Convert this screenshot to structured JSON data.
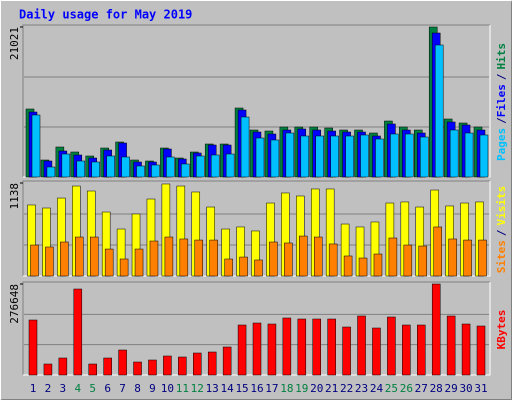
{
  "title": "Daily usage for May 2019",
  "chart_data": [
    {
      "type": "bar",
      "ylim": [
        0,
        21021
      ],
      "yticks": [
        21021
      ],
      "legend_separator": "/",
      "series": [
        {
          "name": "Hits",
          "color": "#008040",
          "values": [
            9530,
            2382,
            4204,
            3504,
            2943,
            4064,
            4905,
            2382,
            2242,
            4064,
            2663,
            3504,
            4625,
            4625,
            9670,
            6587,
            6447,
            7007,
            7007,
            7007,
            6867,
            6587,
            6587,
            6166,
            7848,
            7007,
            6587,
            21021,
            8128,
            7568,
            7007
          ]
        },
        {
          "name": "Files",
          "color": "#0000ff",
          "values": [
            9109,
            2242,
            3644,
            3083,
            2663,
            3784,
            4765,
            2102,
            2102,
            3924,
            2522,
            3364,
            4485,
            4485,
            9390,
            6306,
            6026,
            6587,
            6727,
            6587,
            6447,
            6306,
            6306,
            5746,
            7428,
            6587,
            6166,
            20180,
            7708,
            7288,
            6587
          ]
        },
        {
          "name": "Pages",
          "color": "#00c0ff",
          "values": [
            8689,
            1401,
            3223,
            2242,
            2102,
            2943,
            2803,
            1541,
            1682,
            2803,
            1822,
            2943,
            3083,
            3223,
            8408,
            5466,
            5186,
            6166,
            5746,
            5746,
            5746,
            5746,
            5886,
            5326,
            6026,
            6026,
            5606,
            18498,
            6587,
            6166,
            5886
          ]
        }
      ]
    },
    {
      "type": "bar",
      "ylim": [
        0,
        1138
      ],
      "yticks": [
        1138
      ],
      "legend_separator": "/",
      "series": [
        {
          "name": "Visits",
          "color": "#ffff00",
          "values": [
            869,
            832,
            954,
            1101,
            1040,
            783,
            575,
            759,
            942,
            1126,
            1101,
            1028,
            844,
            575,
            600,
            551,
            893,
            1016,
            979,
            1065,
            1065,
            636,
            600,
            661,
            893,
            906,
            844,
            1052,
            857,
            893,
            906
          ]
        },
        {
          "name": "Sites",
          "color": "#ff8000",
          "values": [
            379,
            355,
            416,
            477,
            477,
            330,
            208,
            330,
            428,
            477,
            453,
            440,
            440,
            208,
            232,
            196,
            416,
            404,
            489,
            477,
            392,
            245,
            220,
            269,
            465,
            379,
            367,
            600,
            453,
            440,
            440
          ]
        }
      ]
    },
    {
      "type": "bar",
      "ylim": [
        0,
        276648
      ],
      "yticks": [
        276648
      ],
      "categories": [
        "1",
        "2",
        "3",
        "4",
        "5",
        "6",
        "7",
        "8",
        "9",
        "10",
        "11",
        "12",
        "13",
        "14",
        "15",
        "16",
        "17",
        "18",
        "19",
        "20",
        "21",
        "22",
        "23",
        "24",
        "25",
        "26",
        "27",
        "28",
        "29",
        "30",
        "31"
      ],
      "category_colors": [
        "#000080",
        "#000080",
        "#000080",
        "#008040",
        "#008040",
        "#000080",
        "#000080",
        "#000080",
        "#000080",
        "#000080",
        "#008040",
        "#008040",
        "#000080",
        "#000080",
        "#000080",
        "#000080",
        "#000080",
        "#008040",
        "#008040",
        "#000080",
        "#000080",
        "#000080",
        "#000080",
        "#000080",
        "#008040",
        "#008040",
        "#000080",
        "#000080",
        "#000080",
        "#000080",
        "#000080"
      ],
      "series": [
        {
          "name": "KBytes",
          "color": "#ff0000",
          "values": [
            167206,
            33441,
            51682,
            261448,
            33441,
            51682,
            76002,
            39521,
            45601,
            57761,
            54721,
            66882,
            69922,
            85122,
            152005,
            158085,
            155045,
            173286,
            170246,
            170246,
            170246,
            145925,
            179366,
            142885,
            176326,
            152005,
            152005,
            276648,
            179366,
            155045,
            148965
          ]
        }
      ]
    }
  ]
}
